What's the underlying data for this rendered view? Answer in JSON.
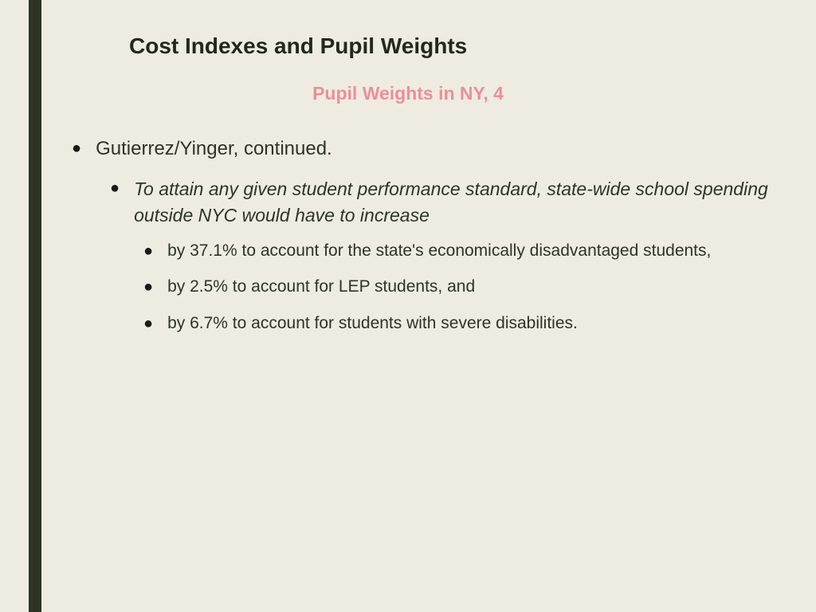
{
  "colors": {
    "background": "#eeece1",
    "sidebar_left": "#eeece1",
    "sidebar_right": "#2e3424",
    "title": "#23291a",
    "subtitle": "#ed8e9a",
    "body_text": "#2e3424",
    "bullet": "#1a1a1a"
  },
  "title": "Cost Indexes and Pupil Weights",
  "subtitle": "Pupil Weights in NY, 4",
  "bullets": {
    "l1": "Gutierrez/Yinger, continued.",
    "l2": "To attain any given student performance standard, state-wide school spending outside NYC would have to increase",
    "l3": [
      "by 37.1% to account for the state's economically disadvantaged students,",
      "by 2.5% to account for LEP students, and",
      "by 6.7% to account for students with severe disabilities."
    ]
  }
}
